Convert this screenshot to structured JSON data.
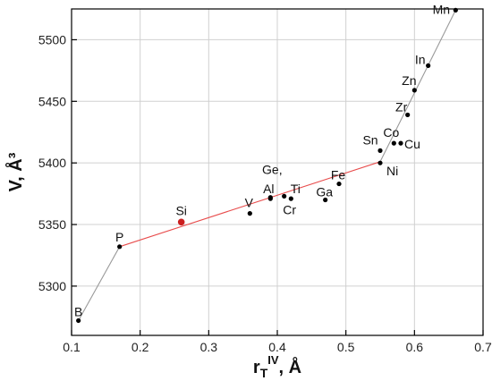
{
  "chart_data": {
    "type": "scatter",
    "title": "",
    "xlabel": {
      "base": "r",
      "sub": "T",
      "sup": "IV",
      "suffix": ", Å"
    },
    "ylabel": "V, Å³",
    "xlim": [
      0.1,
      0.7
    ],
    "ylim": [
      5260,
      5525
    ],
    "grid": true,
    "x_ticks": [
      "0.1",
      "0.2",
      "0.3",
      "0.4",
      "0.5",
      "0.6",
      "0.7"
    ],
    "y_ticks": [
      "5300",
      "5350",
      "5400",
      "5450",
      "5500"
    ],
    "colors": {
      "grid": "#d0d0d0",
      "axis": "#000000",
      "point": "#000000",
      "highlight": "#cc1f1f",
      "trend_line": "#999999",
      "fit_line": "#e84c4c"
    },
    "points": [
      {
        "label": "B",
        "x": 0.11,
        "y": 5272
      },
      {
        "label": "P",
        "x": 0.17,
        "y": 5332
      },
      {
        "label": "Si",
        "x": 0.26,
        "y": 5352,
        "highlight": true
      },
      {
        "label": "V",
        "x": 0.36,
        "y": 5359
      },
      {
        "label": "Ge,",
        "x": 0.39,
        "y": 5372
      },
      {
        "label": "Al",
        "x": 0.39,
        "y": 5371
      },
      {
        "label": "Cr",
        "x": 0.41,
        "y": 5373
      },
      {
        "label": "Ti",
        "x": 0.42,
        "y": 5371
      },
      {
        "label": "Ga",
        "x": 0.47,
        "y": 5370
      },
      {
        "label": "Fe",
        "x": 0.49,
        "y": 5383
      },
      {
        "label": "Ni",
        "x": 0.55,
        "y": 5400
      },
      {
        "label": "Sn",
        "x": 0.55,
        "y": 5410
      },
      {
        "label": "Co",
        "x": 0.57,
        "y": 5416
      },
      {
        "label": "Cu",
        "x": 0.58,
        "y": 5416
      },
      {
        "label": "Zr",
        "x": 0.59,
        "y": 5439
      },
      {
        "label": "Zn",
        "x": 0.6,
        "y": 5459
      },
      {
        "label": "In",
        "x": 0.62,
        "y": 5479
      },
      {
        "label": "Mn",
        "x": 0.66,
        "y": 5524
      }
    ],
    "lines": [
      {
        "kind": "trend",
        "points": [
          [
            0.11,
            5272
          ],
          [
            0.17,
            5332
          ]
        ]
      },
      {
        "kind": "fit",
        "points": [
          [
            0.17,
            5332
          ],
          [
            0.55,
            5401
          ]
        ]
      },
      {
        "kind": "trend",
        "points": [
          [
            0.55,
            5401
          ],
          [
            0.66,
            5524
          ]
        ]
      }
    ]
  }
}
